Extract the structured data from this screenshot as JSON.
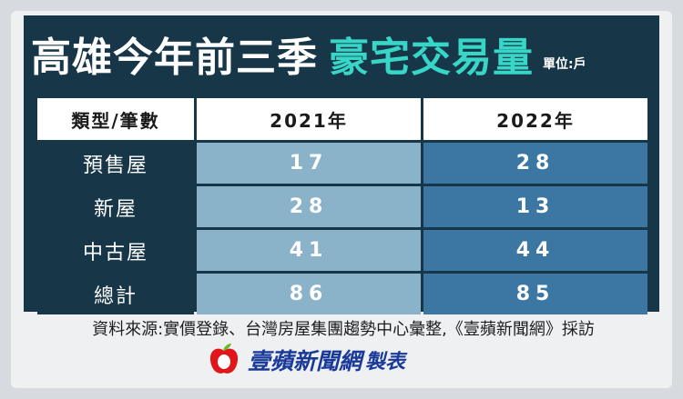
{
  "title": {
    "main": "高雄今年前三季",
    "accent": "豪宅交易量",
    "unit": "單位:戶"
  },
  "table": {
    "headers": [
      "類型/筆數",
      "2021年",
      "2022年"
    ],
    "rows": [
      {
        "label": "預售屋",
        "y2021": "17",
        "y2022": "28"
      },
      {
        "label": "新屋",
        "y2021": "28",
        "y2022": "13"
      },
      {
        "label": "中古屋",
        "y2021": "41",
        "y2022": "44"
      },
      {
        "label": "總計",
        "y2021": "86",
        "y2022": "85"
      }
    ]
  },
  "source": "資料來源:實價登錄、台灣房屋集團趨勢中心彙整,《壹蘋新聞網》採訪",
  "brand": {
    "name": "壹蘋新聞網",
    "suffix": "製表",
    "logo_icon": "apple-icon"
  },
  "colors": {
    "header_bg": "#173648",
    "accent": "#37d6c6",
    "col_2021": "#8ab2c9",
    "col_2022": "#3c77a3",
    "brand": "#1a3a9a",
    "logo_red": "#e0161b",
    "logo_green": "#6ab82e"
  }
}
